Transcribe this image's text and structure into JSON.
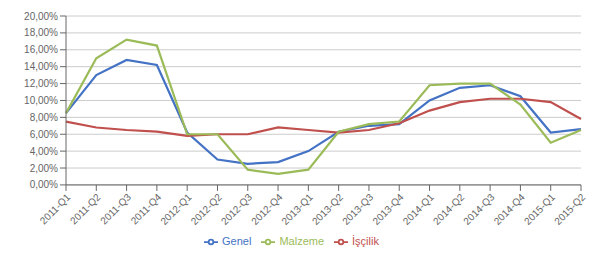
{
  "chart_data": {
    "type": "line",
    "categories": [
      "2011-Q1",
      "2011-Q2",
      "2011-Q3",
      "2011-Q4",
      "2012-Q1",
      "2012-Q2",
      "2012-Q3",
      "2012-Q4",
      "2013-Q1",
      "2013-Q2",
      "2013-Q3",
      "2013-Q4",
      "2014-Q1",
      "2014-Q2",
      "2014-Q3",
      "2014-Q4",
      "2015-Q1",
      "2015-Q2"
    ],
    "series": [
      {
        "name": "Genel",
        "color": "#4472C4",
        "values": [
          8.5,
          13.0,
          14.8,
          14.2,
          6.2,
          3.0,
          2.5,
          2.7,
          4.0,
          6.3,
          7.0,
          7.2,
          10.0,
          11.5,
          11.8,
          10.5,
          6.2,
          6.6
        ]
      },
      {
        "name": "İşçilik",
        "color": "#C0504D",
        "values": [
          7.5,
          6.8,
          6.5,
          6.3,
          5.8,
          6.0,
          6.0,
          6.8,
          6.5,
          6.2,
          6.5,
          7.3,
          8.8,
          9.8,
          10.2,
          10.2,
          9.8,
          7.8
        ]
      },
      {
        "name": "Malzeme",
        "color": "#9BBB59",
        "values": [
          8.5,
          15.0,
          17.2,
          16.5,
          6.0,
          6.0,
          1.8,
          1.3,
          1.8,
          6.3,
          7.2,
          7.5,
          11.8,
          12.0,
          12.0,
          9.5,
          5.0,
          6.5
        ]
      }
    ],
    "ylim": [
      0,
      20
    ],
    "yticks": [
      {
        "value": 0,
        "label": "0,00%"
      },
      {
        "value": 2,
        "label": "2,00%"
      },
      {
        "value": 4,
        "label": "4,00%"
      },
      {
        "value": 6,
        "label": "6,00%"
      },
      {
        "value": 8,
        "label": "8,00%"
      },
      {
        "value": 10,
        "label": "10,00%"
      },
      {
        "value": 12,
        "label": "12,00%"
      },
      {
        "value": 14,
        "label": "14,00%"
      },
      {
        "value": 16,
        "label": "16,00%"
      },
      {
        "value": 18,
        "label": "18,00%"
      },
      {
        "value": 20,
        "label": "20,00%"
      }
    ],
    "grid": true,
    "legend": "bottom"
  }
}
